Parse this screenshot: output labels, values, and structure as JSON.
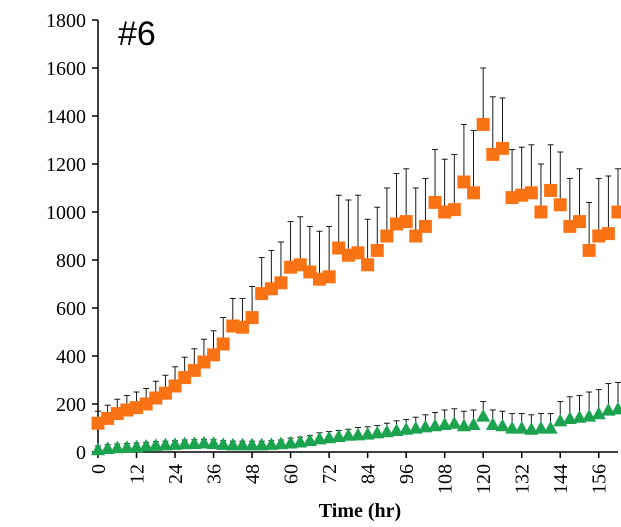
{
  "chart_data": {
    "type": "scatter",
    "title": "",
    "panel_label": "#6",
    "xlabel": "Time (hr)",
    "ylabel": "",
    "xlim": [
      0,
      162
    ],
    "ylim": [
      0,
      1800
    ],
    "x_ticks": [
      0,
      12,
      24,
      36,
      48,
      60,
      72,
      84,
      96,
      108,
      120,
      132,
      144,
      156
    ],
    "y_ticks": [
      0,
      200,
      400,
      600,
      800,
      1000,
      1200,
      1400,
      1600,
      1800
    ],
    "grid": false,
    "legend": "none",
    "series": [
      {
        "marker": "square",
        "color": "#F97315",
        "x": [
          0,
          3,
          6,
          9,
          12,
          15,
          18,
          21,
          24,
          27,
          30,
          33,
          36,
          39,
          42,
          45,
          48,
          51,
          54,
          57,
          60,
          63,
          66,
          69,
          72,
          75,
          78,
          81,
          84,
          87,
          90,
          93,
          96,
          99,
          102,
          105,
          108,
          111,
          114,
          117,
          120,
          123,
          126,
          129,
          132,
          135,
          138,
          141,
          144,
          147,
          150,
          153,
          156,
          159,
          162
        ],
        "y": [
          120,
          140,
          160,
          175,
          185,
          200,
          225,
          245,
          275,
          310,
          340,
          375,
          405,
          450,
          525,
          520,
          560,
          660,
          680,
          705,
          770,
          780,
          750,
          720,
          730,
          850,
          820,
          830,
          780,
          840,
          900,
          950,
          960,
          900,
          940,
          1040,
          1000,
          1010,
          1125,
          1080,
          1365,
          1240,
          1265,
          1060,
          1070,
          1080,
          1000,
          1090,
          1030,
          940,
          960,
          840,
          900,
          910,
          1000
        ],
        "error": [
          50,
          55,
          60,
          60,
          65,
          65,
          70,
          75,
          80,
          85,
          90,
          95,
          100,
          110,
          115,
          120,
          130,
          150,
          160,
          170,
          190,
          200,
          190,
          200,
          210,
          220,
          230,
          240,
          190,
          180,
          200,
          210,
          220,
          200,
          200,
          220,
          220,
          230,
          240,
          260,
          235,
          240,
          210,
          200,
          200,
          200,
          200,
          190,
          220,
          200,
          220,
          200,
          240,
          240,
          180
        ]
      },
      {
        "marker": "triangle",
        "color": "#1BA350",
        "x": [
          0,
          3,
          6,
          9,
          12,
          15,
          18,
          21,
          24,
          27,
          30,
          33,
          36,
          39,
          42,
          45,
          48,
          51,
          54,
          57,
          60,
          63,
          66,
          69,
          72,
          75,
          78,
          81,
          84,
          87,
          90,
          93,
          96,
          99,
          102,
          105,
          108,
          111,
          114,
          117,
          120,
          123,
          126,
          129,
          132,
          135,
          138,
          141,
          144,
          147,
          150,
          153,
          156,
          159,
          162
        ],
        "y": [
          10,
          15,
          18,
          20,
          22,
          25,
          28,
          30,
          32,
          35,
          36,
          38,
          36,
          32,
          30,
          30,
          30,
          30,
          32,
          35,
          38,
          42,
          48,
          55,
          60,
          65,
          70,
          72,
          75,
          80,
          85,
          90,
          95,
          100,
          105,
          110,
          115,
          120,
          110,
          115,
          150,
          115,
          110,
          100,
          100,
          95,
          100,
          100,
          130,
          140,
          145,
          150,
          160,
          175,
          180
        ],
        "error": [
          15,
          15,
          15,
          15,
          15,
          15,
          15,
          15,
          15,
          15,
          15,
          15,
          15,
          15,
          15,
          15,
          15,
          15,
          15,
          15,
          20,
          20,
          20,
          25,
          25,
          25,
          25,
          30,
          30,
          30,
          35,
          40,
          40,
          45,
          50,
          55,
          60,
          60,
          60,
          60,
          60,
          60,
          60,
          60,
          60,
          60,
          60,
          60,
          80,
          90,
          90,
          100,
          100,
          110,
          110
        ]
      }
    ]
  }
}
